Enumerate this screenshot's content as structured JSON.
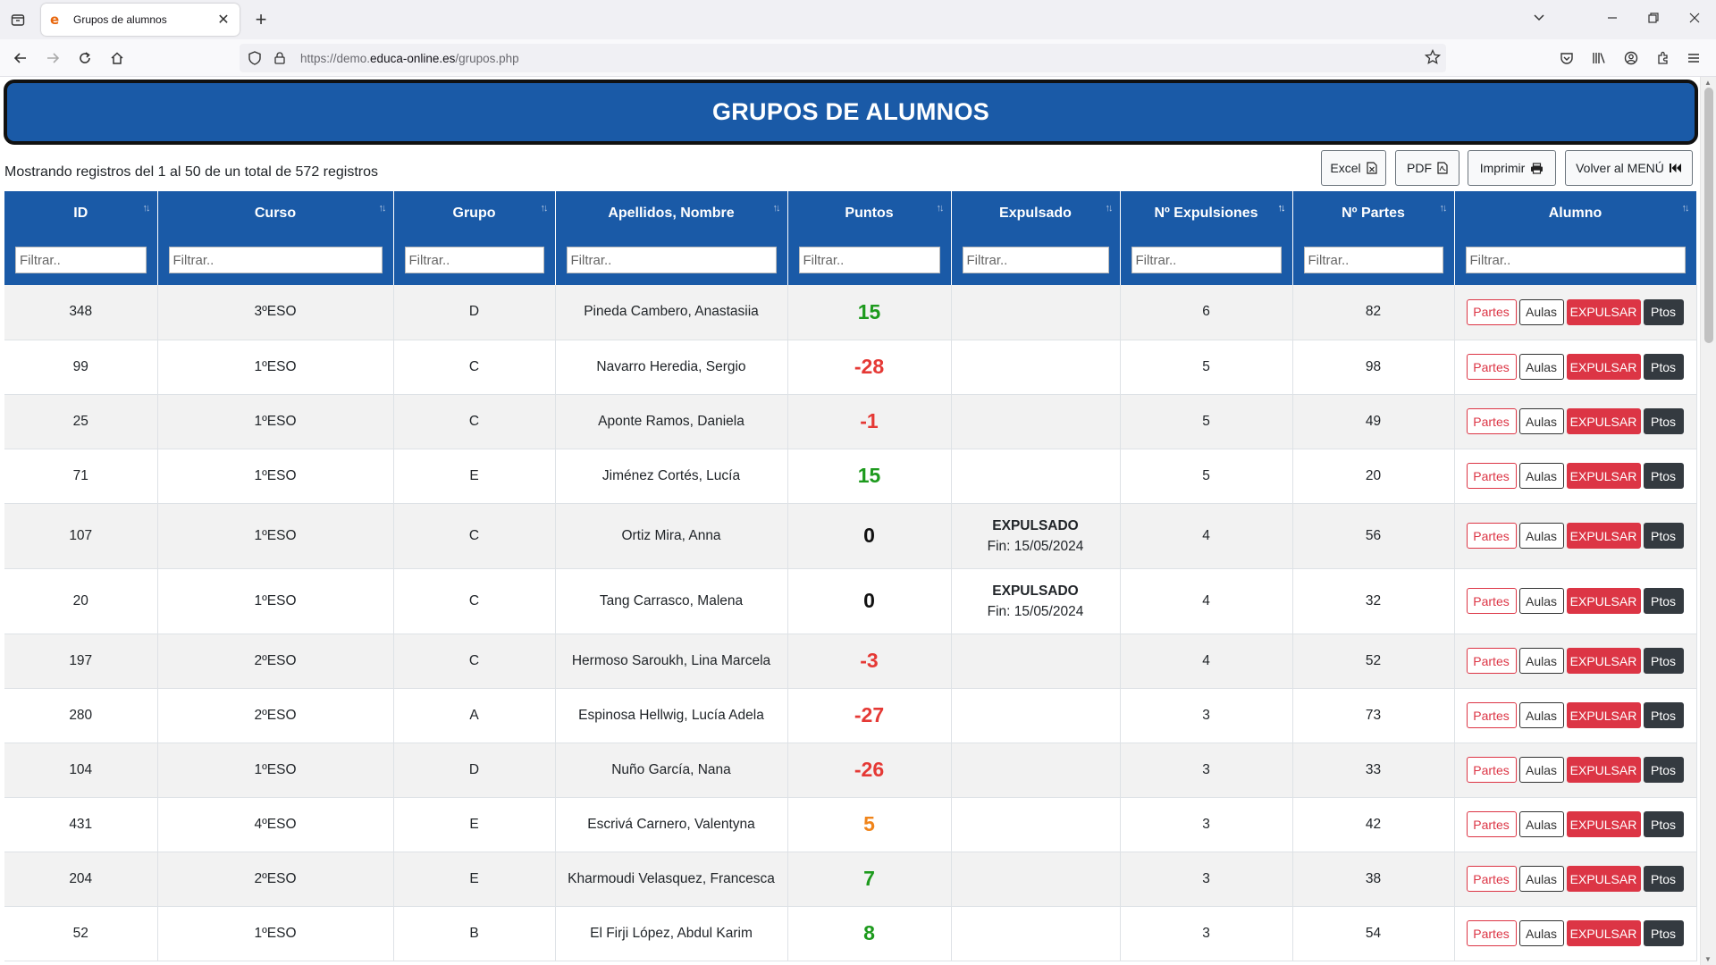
{
  "browser": {
    "tab_title": "Grupos de alumnos",
    "url_prefix": "https://demo.",
    "url_domain": "educa-online.es",
    "url_path": "/grupos.php"
  },
  "page": {
    "title": "GRUPOS DE ALUMNOS",
    "info": "Mostrando registros del 1 al 50 de un total de 572 registros",
    "buttons": {
      "excel": "Excel",
      "pdf": "PDF",
      "print": "Imprimir",
      "menu": "Volver al MENÚ"
    }
  },
  "table": {
    "columns": [
      "ID",
      "Curso",
      "Grupo",
      "Apellidos, Nombre",
      "Puntos",
      "Expulsado",
      "Nº Expulsiones",
      "Nº Partes",
      "Alumno"
    ],
    "filter_placeholder": "Filtrar..",
    "action_labels": {
      "partes": "Partes",
      "aulas": "Aulas",
      "expulsar": "EXPULSAR",
      "ptos": "Ptos"
    },
    "colors": {
      "positive": "#1d9a1d",
      "negative": "#e53935",
      "neutral": "#111111",
      "warning": "#f0841a"
    },
    "rows": [
      {
        "id": "348",
        "curso": "3ºESO",
        "grupo": "D",
        "nombre": "Pineda Cambero, Anastasiia",
        "puntos": "15",
        "color": "positive",
        "expulsado": "",
        "fin": "",
        "expulsiones": "6",
        "partes": "82"
      },
      {
        "id": "99",
        "curso": "1ºESO",
        "grupo": "C",
        "nombre": "Navarro Heredia, Sergio",
        "puntos": "-28",
        "color": "negative",
        "expulsado": "",
        "fin": "",
        "expulsiones": "5",
        "partes": "98"
      },
      {
        "id": "25",
        "curso": "1ºESO",
        "grupo": "C",
        "nombre": "Aponte Ramos, Daniela",
        "puntos": "-1",
        "color": "negative",
        "expulsado": "",
        "fin": "",
        "expulsiones": "5",
        "partes": "49"
      },
      {
        "id": "71",
        "curso": "1ºESO",
        "grupo": "E",
        "nombre": "Jiménez Cortés, Lucía",
        "puntos": "15",
        "color": "positive",
        "expulsado": "",
        "fin": "",
        "expulsiones": "5",
        "partes": "20"
      },
      {
        "id": "107",
        "curso": "1ºESO",
        "grupo": "C",
        "nombre": "Ortiz Mira, Anna",
        "puntos": "0",
        "color": "neutral",
        "expulsado": "EXPULSADO",
        "fin": "Fin: 15/05/2024",
        "expulsiones": "4",
        "partes": "56"
      },
      {
        "id": "20",
        "curso": "1ºESO",
        "grupo": "C",
        "nombre": "Tang Carrasco, Malena",
        "puntos": "0",
        "color": "neutral",
        "expulsado": "EXPULSADO",
        "fin": "Fin: 15/05/2024",
        "expulsiones": "4",
        "partes": "32"
      },
      {
        "id": "197",
        "curso": "2ºESO",
        "grupo": "C",
        "nombre": "Hermoso Saroukh, Lina Marcela",
        "puntos": "-3",
        "color": "negative",
        "expulsado": "",
        "fin": "",
        "expulsiones": "4",
        "partes": "52"
      },
      {
        "id": "280",
        "curso": "2ºESO",
        "grupo": "A",
        "nombre": "Espinosa Hellwig, Lucía Adela",
        "puntos": "-27",
        "color": "negative",
        "expulsado": "",
        "fin": "",
        "expulsiones": "3",
        "partes": "73"
      },
      {
        "id": "104",
        "curso": "1ºESO",
        "grupo": "D",
        "nombre": "Nuño García, Nana",
        "puntos": "-26",
        "color": "negative",
        "expulsado": "",
        "fin": "",
        "expulsiones": "3",
        "partes": "33"
      },
      {
        "id": "431",
        "curso": "4ºESO",
        "grupo": "E",
        "nombre": "Escrivá Carnero, Valentyna",
        "puntos": "5",
        "color": "warning",
        "expulsado": "",
        "fin": "",
        "expulsiones": "3",
        "partes": "42"
      },
      {
        "id": "204",
        "curso": "2ºESO",
        "grupo": "E",
        "nombre": "Kharmoudi Velasquez, Francesca",
        "puntos": "7",
        "color": "positive",
        "expulsado": "",
        "fin": "",
        "expulsiones": "3",
        "partes": "38"
      },
      {
        "id": "52",
        "curso": "1ºESO",
        "grupo": "B",
        "nombre": "El Firji López, Abdul Karim",
        "puntos": "8",
        "color": "positive",
        "expulsado": "",
        "fin": "",
        "expulsiones": "3",
        "partes": "54"
      }
    ]
  }
}
